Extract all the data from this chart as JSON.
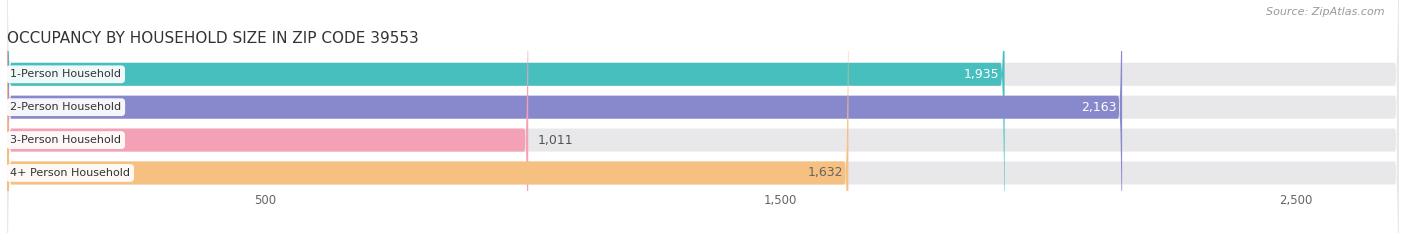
{
  "title": "OCCUPANCY BY HOUSEHOLD SIZE IN ZIP CODE 39553",
  "source": "Source: ZipAtlas.com",
  "categories": [
    "1-Person Household",
    "2-Person Household",
    "3-Person Household",
    "4+ Person Household"
  ],
  "values": [
    1935,
    2163,
    1011,
    1632
  ],
  "bar_colors": [
    "#47BFBF",
    "#8888CC",
    "#F4A0B5",
    "#F5C080"
  ],
  "value_label_colors": [
    "#ffffff",
    "#ffffff",
    "#666666",
    "#666666"
  ],
  "xlim_max": 2700,
  "xticks": [
    500,
    1500,
    2500
  ],
  "background_color": "#ffffff",
  "bar_bg_color": "#e8e8ea",
  "title_fontsize": 11,
  "source_fontsize": 8,
  "bar_label_fontsize": 9,
  "category_label_fontsize": 8,
  "bar_height": 0.7
}
